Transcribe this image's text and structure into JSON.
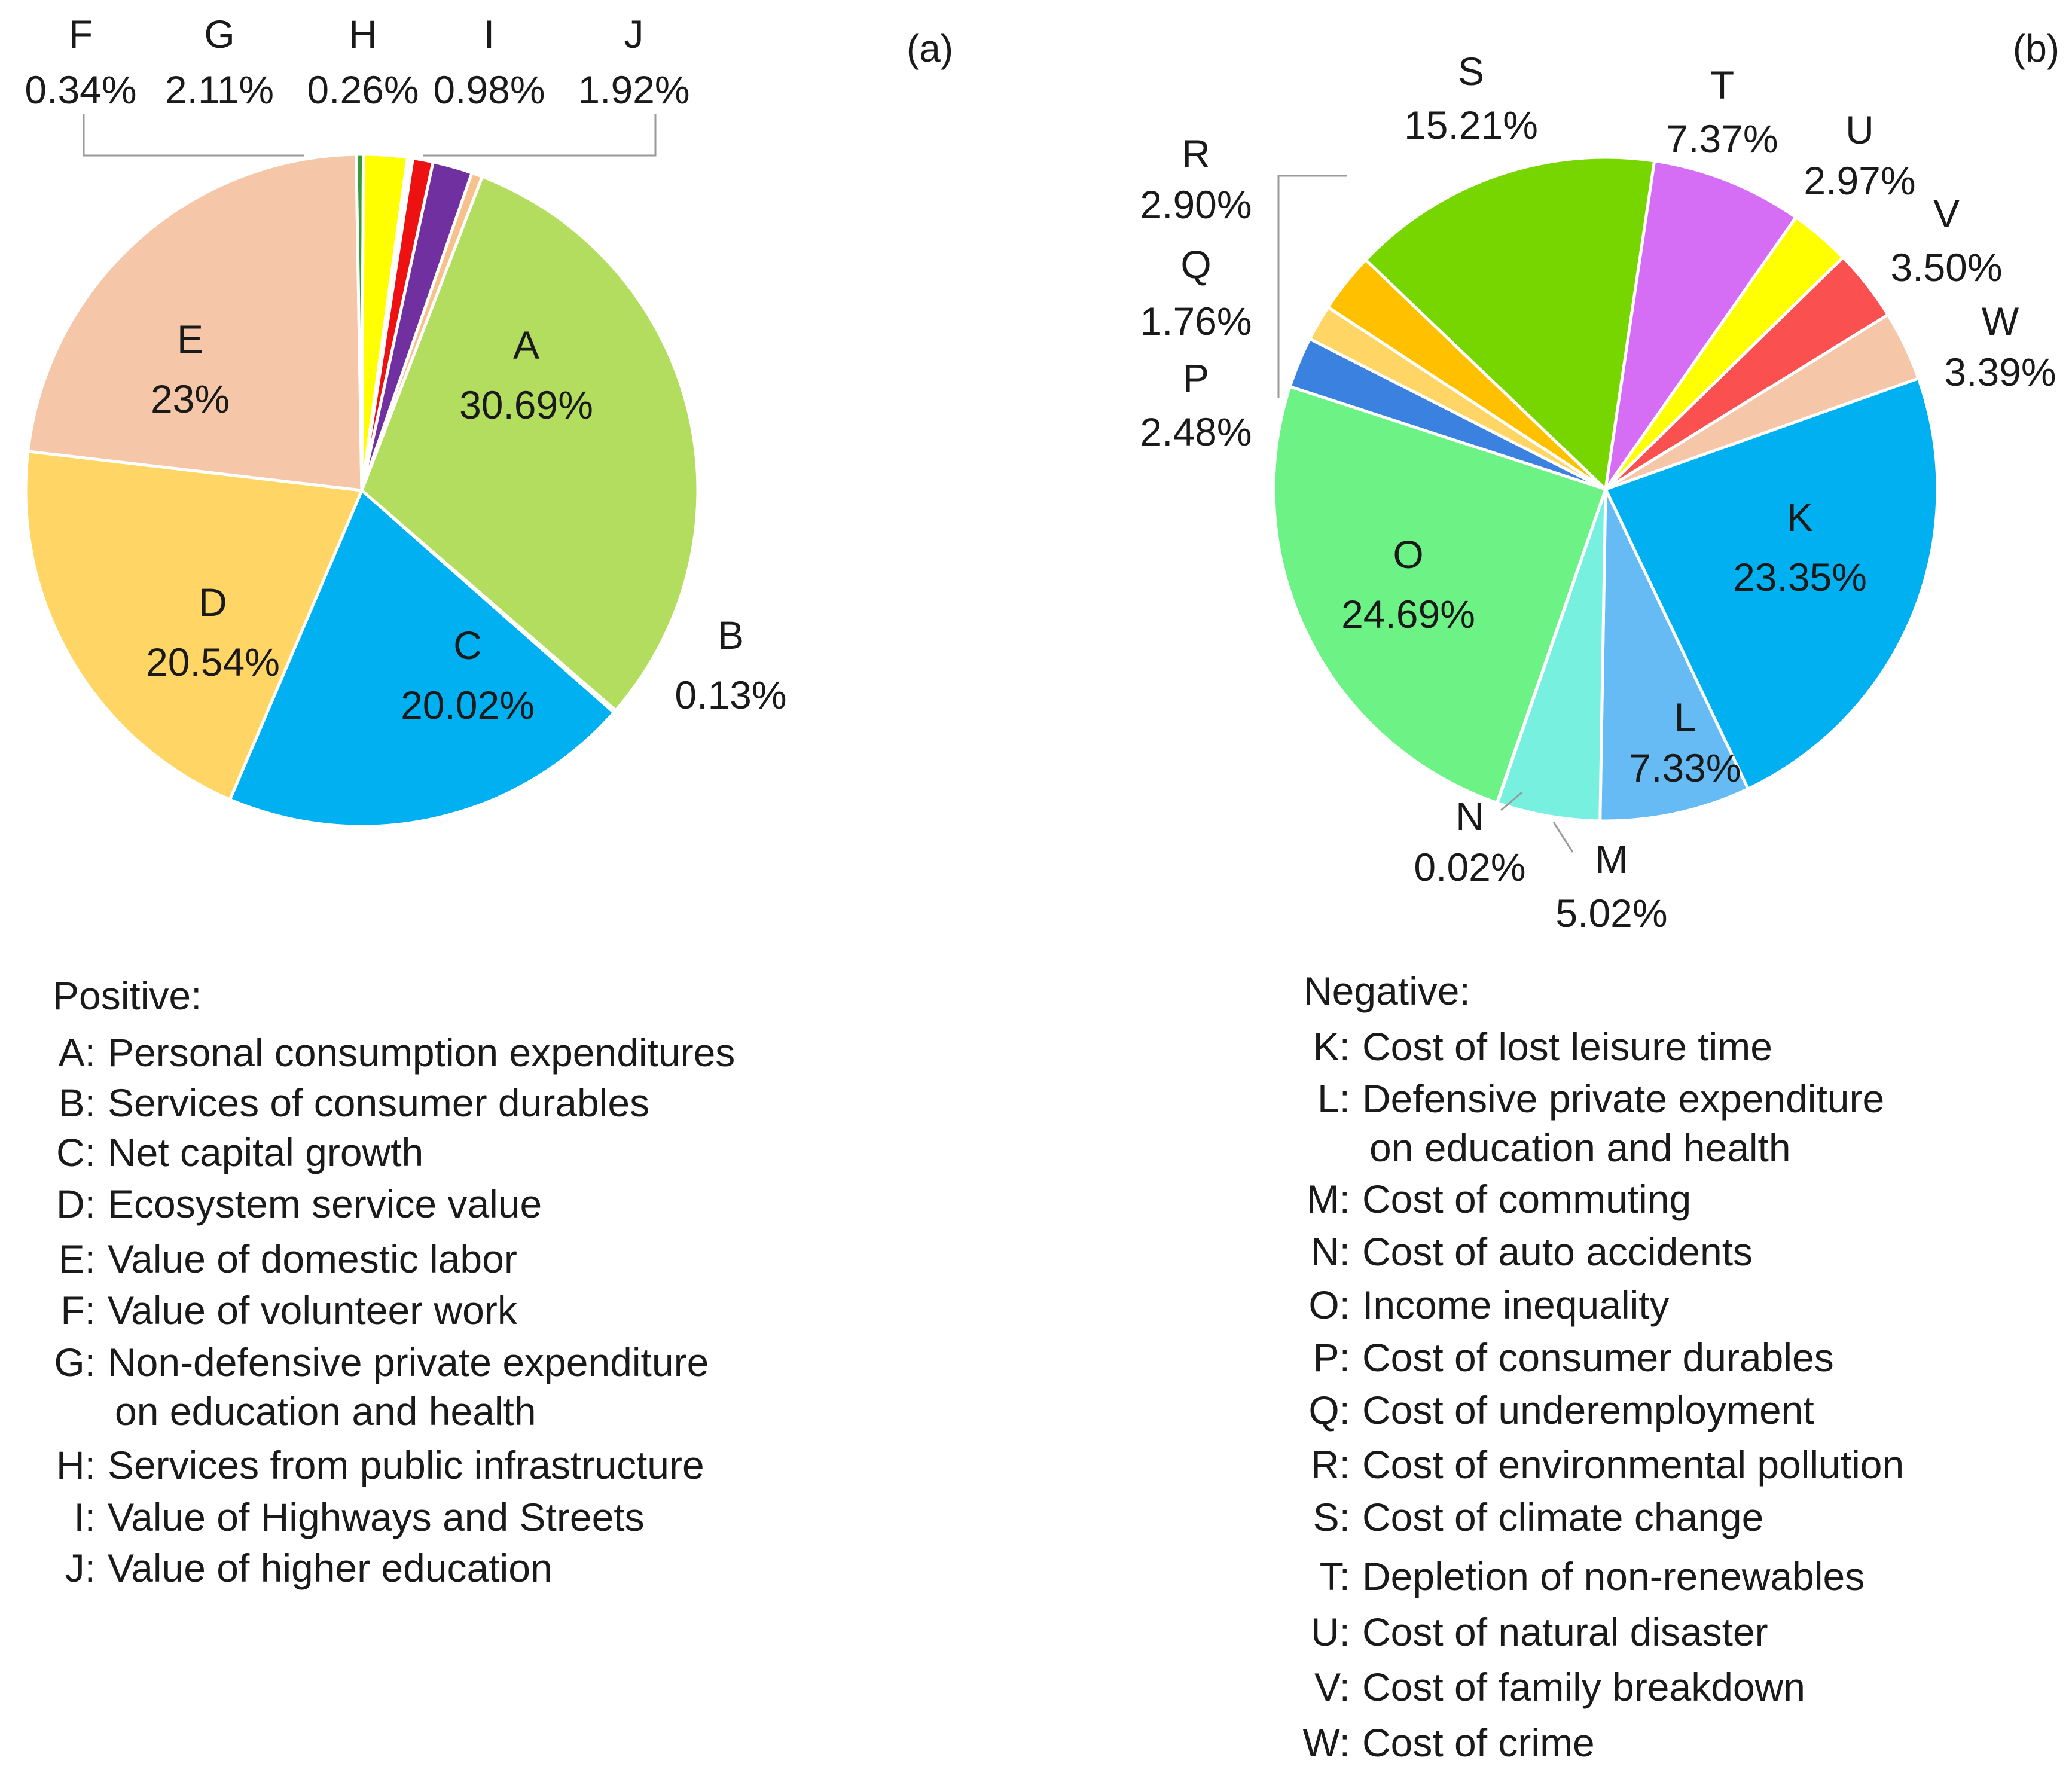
{
  "chart_data": [
    {
      "type": "pie",
      "panel_label": "(a)",
      "legend_title": "Positive:",
      "slices": [
        {
          "key": "A",
          "value": 30.69,
          "label": "30.69%",
          "name": "Personal consumption expenditures",
          "color": "#b3dd5f"
        },
        {
          "key": "B",
          "value": 0.13,
          "label": "0.13%",
          "name": "Services of consumer durables",
          "color": "#dde8f2"
        },
        {
          "key": "C",
          "value": 20.02,
          "label": "20.02%",
          "name": "Net capital growth",
          "color": "#00b0f0"
        },
        {
          "key": "D",
          "value": 20.54,
          "label": "20.54%",
          "name": "Ecosystem service value",
          "color": "#ffd666"
        },
        {
          "key": "E",
          "value": 23,
          "label": "23%",
          "name": "Value of domestic labor",
          "color": "#f5c6a8"
        },
        {
          "key": "F",
          "value": 0.34,
          "label": "0.34%",
          "name": "Value of volunteer work",
          "color": "#3a9a3a"
        },
        {
          "key": "G",
          "value": 2.11,
          "label": "2.11%",
          "name": "Non-defensive private expenditure\non education and health",
          "color": "#ffff00"
        },
        {
          "key": "H",
          "value": 0.26,
          "label": "0.26%",
          "name": "Services from public infrastructure",
          "color": "#ffffff"
        },
        {
          "key": "I",
          "value": 0.98,
          "label": "0.98%",
          "name": "Value of Highways and Streets",
          "color": "#ee1111"
        },
        {
          "key": "J",
          "value": 1.92,
          "label": "1.92%",
          "name": "Value of higher education",
          "color": "#7030a0"
        }
      ],
      "extra_slice_color": "#f8c08a",
      "extra_slice_value": 0.52
    },
    {
      "type": "pie",
      "panel_label": "(b)",
      "legend_title": "Negative:",
      "slices": [
        {
          "key": "K",
          "value": 23.35,
          "label": "23.35%",
          "name": "Cost of lost leisure time",
          "color": "#00b0f0"
        },
        {
          "key": "L",
          "value": 7.33,
          "label": "7.33%",
          "name": "Defensive private expenditure\non education and health",
          "color": "#66bbf5"
        },
        {
          "key": "M",
          "value": 5.02,
          "label": "5.02%",
          "name": "Cost of commuting",
          "color": "#77f0e0"
        },
        {
          "key": "N",
          "value": 0.02,
          "label": "0.02%",
          "name": "Cost of auto accidents",
          "color": "#aaaaaa"
        },
        {
          "key": "O",
          "value": 24.69,
          "label": "24.69%",
          "name": "Income inequality",
          "color": "#6cf285"
        },
        {
          "key": "P",
          "value": 2.48,
          "label": "2.48%",
          "name": "Cost of consumer durables",
          "color": "#3b82e0"
        },
        {
          "key": "Q",
          "value": 1.76,
          "label": "1.76%",
          "name": "Cost of underemployment",
          "color": "#ffd666"
        },
        {
          "key": "R",
          "value": 2.9,
          "label": "2.90%",
          "name": "Cost of environmental pollution",
          "color": "#ffc000"
        },
        {
          "key": "S",
          "value": 15.21,
          "label": "15.21%",
          "name": "Cost of climate change",
          "color": "#77d600"
        },
        {
          "key": "T",
          "value": 7.37,
          "label": "7.37%",
          "name": "Depletion of non-renewables",
          "color": "#d66ef5"
        },
        {
          "key": "U",
          "value": 2.97,
          "label": "2.97%",
          "name": "Cost of natural disaster",
          "color": "#ffff00"
        },
        {
          "key": "V",
          "value": 3.5,
          "label": "3.50%",
          "name": "Cost of family breakdown",
          "color": "#fa5050"
        },
        {
          "key": "W",
          "value": 3.39,
          "label": "3.39%",
          "name": "Cost of crime",
          "color": "#f5c6a8"
        }
      ]
    }
  ]
}
